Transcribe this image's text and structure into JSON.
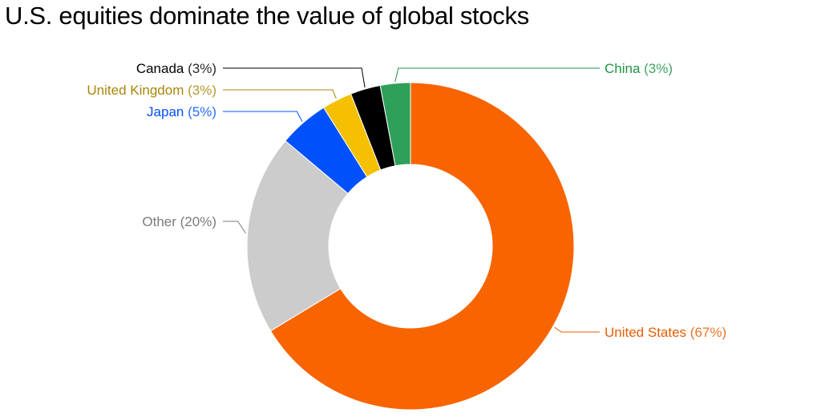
{
  "chart_data": {
    "type": "pie",
    "title": "U.S. equities dominate the value of global stocks",
    "donut": true,
    "legend": "none",
    "slices": [
      {
        "name": "United States",
        "value": 67,
        "label": "(67%)",
        "color": "#f86400"
      },
      {
        "name": "Other",
        "value": 20,
        "label": "(20%)",
        "color": "#cccccc"
      },
      {
        "name": "Japan",
        "value": 5,
        "label": "(5%)",
        "color": "#0051fb"
      },
      {
        "name": "United Kingdom",
        "value": 3,
        "label": "(3%)",
        "color": "#f5c000"
      },
      {
        "name": "Canada",
        "value": 3,
        "label": "(3%)",
        "color": "#000000"
      },
      {
        "name": "China",
        "value": 3,
        "label": "(3%)",
        "color": "#2ea05a"
      }
    ]
  },
  "label_colors": {
    "United States": "#e85c00",
    "Other": "#7a7a7a",
    "Japan": "#0051fb",
    "United Kingdom": "#a8860a",
    "Canada": "#000000",
    "China": "#1f9446"
  }
}
